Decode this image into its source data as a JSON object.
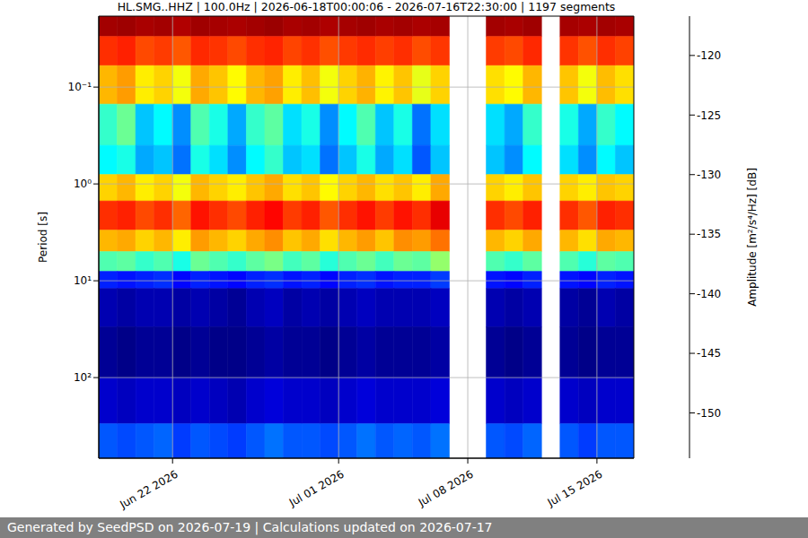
{
  "chart_data": {
    "type": "heatmap",
    "title": "HL.SMG..HHZ | 100.0Hz | 2026-06-18T00:00:06 - 2026-07-16T22:30:00 | 1197 segments",
    "ylabel": "Period [s]",
    "log": "y",
    "grid": true,
    "xlim": [
      "2026-06-18",
      "2026-07-17"
    ],
    "xticks": [
      {
        "value": "2026-06-22",
        "label": "Jun 22 2026"
      },
      {
        "value": "2026-07-01",
        "label": "Jul 01 2026"
      },
      {
        "value": "2026-07-08",
        "label": "Jul 08 2026"
      },
      {
        "value": "2026-07-15",
        "label": "Jul 15 2026"
      }
    ],
    "ylim": [
      0.0185,
      680
    ],
    "yticks": [
      {
        "value": 0.1,
        "label": "10⁻¹"
      },
      {
        "value": 1,
        "label": "10⁰"
      },
      {
        "value": 10,
        "label": "10¹"
      },
      {
        "value": 100,
        "label": "10²"
      }
    ],
    "x_bins": [
      "2026-06-18",
      "2026-06-19",
      "2026-06-20",
      "2026-06-21",
      "2026-06-22",
      "2026-06-23",
      "2026-06-24",
      "2026-06-25",
      "2026-06-26",
      "2026-06-27",
      "2026-06-28",
      "2026-06-29",
      "2026-06-30",
      "2026-07-01",
      "2026-07-02",
      "2026-07-03",
      "2026-07-04",
      "2026-07-05",
      "2026-07-06",
      "2026-07-07",
      "2026-07-08",
      "2026-07-09",
      "2026-07-10",
      "2026-07-11",
      "2026-07-12",
      "2026-07-13",
      "2026-07-14",
      "2026-07-15",
      "2026-07-16",
      "2026-07-17"
    ],
    "period_bins": [
      0.0185,
      0.03,
      0.06,
      0.15,
      0.4,
      0.8,
      1.5,
      3,
      5,
      8,
      12,
      30,
      100,
      300,
      680
    ],
    "cells": [
      [
        -118,
        -117.8,
        -118.2,
        -118,
        -118.5,
        -117.9,
        -118.1,
        -118.3,
        -118,
        -117.7,
        -118.2,
        -118,
        -118.4,
        -118.1,
        -117.9,
        -118.2,
        -118,
        -118.3,
        -118.1,
        null,
        null,
        -118,
        -118.2,
        -117.9,
        null,
        -118.1,
        -118.3,
        -118,
        -118.2
      ],
      [
        -123,
        -122.5,
        -124,
        -123.5,
        -124.5,
        -122.8,
        -123.2,
        -124,
        -123,
        -122.6,
        -123.8,
        -123.1,
        -124.2,
        -123.4,
        -122.9,
        -123.6,
        -123,
        -124.1,
        -123.3,
        null,
        null,
        -123.5,
        -124,
        -122.8,
        null,
        -123.2,
        -124.3,
        -123,
        -123.7
      ],
      [
        -128,
        -127,
        -130,
        -129,
        -131,
        -127.5,
        -128.5,
        -130.5,
        -128,
        -127.2,
        -130,
        -128.3,
        -131,
        -129,
        -127.8,
        -130.2,
        -128.5,
        -131.5,
        -129,
        null,
        null,
        -129.5,
        -130.5,
        -128,
        null,
        -128.5,
        -131,
        -128.2,
        -129.5
      ],
      [
        -138,
        -136,
        -142,
        -140,
        -144,
        -137,
        -139,
        -143,
        -138,
        -136.5,
        -141,
        -139,
        -144,
        -140,
        -137,
        -142,
        -139,
        -145,
        -141,
        null,
        null,
        -141,
        -143,
        -138,
        null,
        -139,
        -143,
        -138,
        -140
      ],
      [
        -140,
        -139,
        -143,
        -142,
        -145,
        -139,
        -141,
        -144,
        -140,
        -138,
        -142,
        -141,
        -145,
        -142,
        -139,
        -143,
        -141,
        -146,
        -142,
        null,
        null,
        -142,
        -144,
        -140,
        null,
        -141,
        -144,
        -140,
        -142
      ],
      [
        -129,
        -128,
        -130,
        -129,
        -131,
        -128,
        -129,
        -130,
        -128.5,
        -127.5,
        -129.5,
        -128.5,
        -130.5,
        -129,
        -128,
        -129.5,
        -128.5,
        -130,
        -127.5,
        null,
        null,
        -129,
        -130,
        -128.5,
        null,
        -129,
        -130,
        -128.5,
        -129
      ],
      [
        -123,
        -122.5,
        -124,
        -123,
        -125,
        -122,
        -123,
        -124,
        -122.5,
        -121.5,
        -123.5,
        -122.5,
        -124.5,
        -123,
        -122,
        -123.5,
        -122,
        -123,
        -120.5,
        null,
        null,
        -123,
        -124,
        -122.5,
        null,
        -123,
        -124.5,
        -122.5,
        -123
      ],
      [
        -128,
        -127.5,
        -129,
        -128,
        -130,
        -127,
        -128,
        -129,
        -127.5,
        -126.5,
        -128.5,
        -127.5,
        -129.5,
        -128,
        -127,
        -128.5,
        -126.5,
        -127,
        -125.5,
        null,
        null,
        -128,
        -129,
        -127.5,
        null,
        -128,
        -129.5,
        -127.5,
        -128
      ],
      [
        -137,
        -136.5,
        -138,
        -137,
        -139,
        -136,
        -137,
        -138,
        -136.5,
        -135.5,
        -137.5,
        -136.5,
        -138.5,
        -137,
        -136,
        -137.5,
        -136,
        -136.5,
        -134.5,
        null,
        null,
        -137,
        -138,
        -136.5,
        null,
        -137,
        -138.5,
        -136.5,
        -137
      ],
      [
        -148,
        -148.5,
        -148,
        -147.5,
        -149,
        -148,
        -148.5,
        -149,
        -148,
        -147.5,
        -148.5,
        -148,
        -149,
        -148,
        -147.5,
        -148.5,
        -148,
        -148,
        -147,
        null,
        null,
        -148.5,
        -149,
        -148,
        null,
        -148.5,
        -149,
        -148,
        -148.5
      ],
      [
        -152,
        -152.5,
        -152,
        -152,
        -152.5,
        -152,
        -152.5,
        -153,
        -152,
        -151.5,
        -152.5,
        -152,
        -152.5,
        -152,
        -151.5,
        -152,
        -152,
        -152,
        -151.5,
        null,
        null,
        -152,
        -152.5,
        -152,
        null,
        -152.5,
        -153,
        -152,
        -152.5
      ],
      [
        -153,
        -153.5,
        -153,
        -153,
        -153.5,
        -153,
        -153.5,
        -153.5,
        -153,
        -152.5,
        -153,
        -153,
        -153.5,
        -153,
        -152.5,
        -153,
        -153,
        -153,
        -152.5,
        null,
        null,
        -153,
        -153.5,
        -153,
        null,
        -153,
        -153.5,
        -153,
        -153
      ],
      [
        -151,
        -151.5,
        -151,
        -151,
        -151.5,
        -151,
        -151.5,
        -152,
        -151,
        -150.5,
        -151,
        -151,
        -151.5,
        -151,
        -150.5,
        -151,
        -151,
        -151,
        -150.5,
        null,
        null,
        -151,
        -151.5,
        -151,
        null,
        -151,
        -151.5,
        -151,
        -151
      ],
      [
        -146,
        -146.5,
        -146,
        -145.5,
        -147,
        -146,
        -146.5,
        -147,
        -146,
        -145,
        -146,
        -146,
        -146.5,
        -146,
        -145,
        -146,
        -145.5,
        -146,
        -145,
        null,
        null,
        -146,
        -146.5,
        -145.5,
        null,
        -146,
        -147,
        -146,
        -146
      ]
    ],
    "colorbar": {
      "label": "Amplitude [m²/s⁴/Hz] [dB]",
      "range": [
        -153.8,
        -116.7
      ],
      "ticks": [
        -150,
        -145,
        -140,
        -135,
        -130,
        -125,
        -120
      ]
    }
  },
  "footer": "Generated by SeedPSD on 2026-07-19 | Calculations updated on 2026-07-17"
}
